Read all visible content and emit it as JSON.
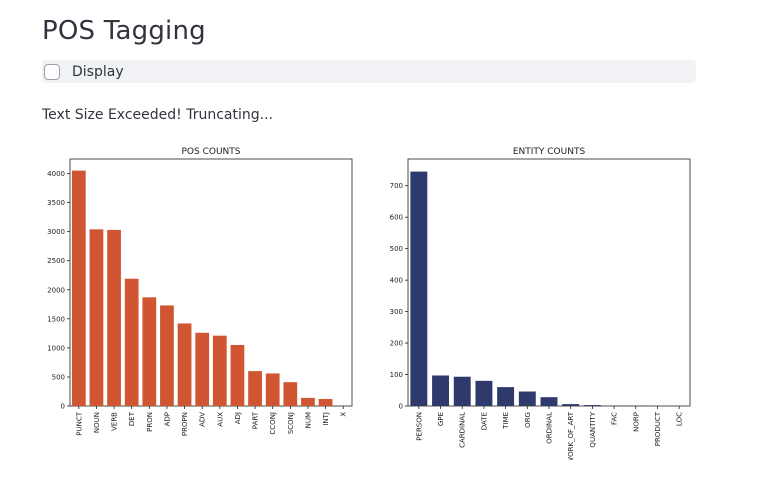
{
  "page": {
    "title": "POS Tagging",
    "display_checkbox_label": "Display",
    "warning": "Text Size Exceeded! Truncating..."
  },
  "colors": {
    "pos_bar": "#d05533",
    "entity_bar": "#2d3a6b",
    "axis": "#222222"
  },
  "chart_data": [
    {
      "type": "bar",
      "title": "POS COUNTS",
      "xlabel": "",
      "ylabel": "",
      "categories": [
        "PUNCT",
        "NOUN",
        "VERB",
        "DET",
        "PRON",
        "ADP",
        "PROPN",
        "ADV",
        "AUX",
        "ADJ",
        "PART",
        "CCONJ",
        "SCONJ",
        "NUM",
        "INTJ",
        "X"
      ],
      "values": [
        4050,
        3040,
        3030,
        2190,
        1870,
        1730,
        1420,
        1260,
        1210,
        1050,
        600,
        560,
        410,
        140,
        120,
        0
      ],
      "yticks": [
        0,
        500,
        1000,
        1500,
        2000,
        2500,
        3000,
        3500,
        4000
      ],
      "ylim": [
        0,
        4250
      ],
      "grid": false,
      "color": "#d05533"
    },
    {
      "type": "bar",
      "title": "ENTITY COUNTS",
      "xlabel": "",
      "ylabel": "",
      "categories": [
        "PERSON",
        "GPE",
        "CARDINAL",
        "DATE",
        "TIME",
        "ORG",
        "ORDINAL",
        "WORK_OF_ART",
        "QUANTITY",
        "FAC",
        "NORP",
        "PRODUCT",
        "LOC"
      ],
      "values": [
        745,
        97,
        93,
        80,
        60,
        46,
        28,
        6,
        3,
        1,
        1,
        0,
        0
      ],
      "yticks": [
        0,
        100,
        200,
        300,
        400,
        500,
        600,
        700
      ],
      "ylim": [
        0,
        785
      ],
      "grid": false,
      "color": "#2d3a6b"
    }
  ]
}
